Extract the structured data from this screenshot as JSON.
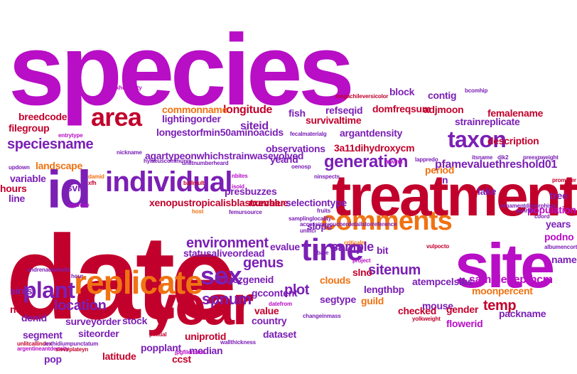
{
  "palette": {
    "magenta": "#b80ec6",
    "purple": "#7b1fb5",
    "crimson": "#c2002c",
    "red": "#d92010",
    "orange": "#f07212"
  },
  "words": [
    {
      "text": "species",
      "color": "#b80ec6"
    },
    {
      "text": "date",
      "color": "#c2002c"
    },
    {
      "text": "treatment",
      "color": "#c2002c"
    },
    {
      "text": "year",
      "color": "#c2002c"
    },
    {
      "text": "site",
      "color": "#b80ec6"
    },
    {
      "text": "id",
      "color": "#7b1fb5"
    },
    {
      "text": "replicate",
      "color": "#f07212"
    },
    {
      "text": "time",
      "color": "#7b1fb5"
    },
    {
      "text": "comments",
      "color": "#f07212"
    },
    {
      "text": "individual",
      "color": "#7b1fb5"
    },
    {
      "text": "area",
      "color": "#c2002c"
    },
    {
      "text": "sex",
      "color": "#7b1fb5"
    },
    {
      "text": "plant",
      "color": "#7b1fb5"
    },
    {
      "text": "taxon",
      "color": "#7b1fb5"
    },
    {
      "text": "generation",
      "color": "#7b1fb5"
    },
    {
      "text": "location",
      "color": "#7b1fb5"
    },
    {
      "text": "environment",
      "color": "#7b1fb5"
    },
    {
      "text": "sample",
      "color": "#7b1fb5"
    },
    {
      "text": "speciesname",
      "color": "#7b1fb5"
    },
    {
      "text": "genus",
      "color": "#7b1fb5"
    },
    {
      "text": "plot",
      "color": "#7b1fb5"
    },
    {
      "text": "sitenum",
      "color": "#7b1fb5"
    },
    {
      "text": "spnum",
      "color": "#7b1fb5"
    },
    {
      "text": "temp",
      "color": "#c2002c"
    },
    {
      "text": "siteid",
      "color": "#7b1fb5"
    },
    {
      "text": "longitude",
      "color": "#c2002c"
    },
    {
      "text": "lightingorder",
      "color": "#7b1fb5"
    },
    {
      "text": "commonname",
      "color": "#f07212"
    },
    {
      "text": "longestorfmin50aminoacids",
      "color": "#7b1fb5"
    },
    {
      "text": "agartypeonwhichstrainwasevolved",
      "color": "#7b1fb5"
    },
    {
      "text": "xenopustropicalisblastxevalue",
      "color": "#c2002c"
    },
    {
      "text": "statusaliveordead",
      "color": "#7b1fb5"
    },
    {
      "text": "entrezgeneid",
      "color": "#7b1fb5"
    },
    {
      "text": "gccontent",
      "color": "#7b1fb5"
    },
    {
      "text": "sampledepthcm",
      "color": "#b80ec6"
    },
    {
      "text": "pfamevaluethreshold01",
      "color": "#7b1fb5"
    },
    {
      "text": "3a11dihydroxycm",
      "color": "#c2002c"
    },
    {
      "text": "description",
      "color": "#c2002c"
    },
    {
      "text": "strainreplicate",
      "color": "#7b1fb5"
    },
    {
      "text": "femalename",
      "color": "#c2002c"
    },
    {
      "text": "adjmoon",
      "color": "#c2002c"
    },
    {
      "text": "domfreqsum",
      "color": "#c2002c"
    },
    {
      "text": "survivaltime",
      "color": "#c2002c"
    },
    {
      "text": "refseqid",
      "color": "#7b1fb5"
    },
    {
      "text": "fish",
      "color": "#7b1fb5"
    },
    {
      "text": "block",
      "color": "#7b1fb5"
    },
    {
      "text": "contig",
      "color": "#7b1fb5"
    },
    {
      "text": "argantdensity",
      "color": "#7b1fb5"
    },
    {
      "text": "observations",
      "color": "#7b1fb5"
    },
    {
      "text": "yearid",
      "color": "#7b1fb5"
    },
    {
      "text": "breedcode",
      "color": "#c2002c"
    },
    {
      "text": "filegroup",
      "color": "#c2002c"
    },
    {
      "text": "landscape",
      "color": "#f07212"
    },
    {
      "text": "variable",
      "color": "#7b1fb5"
    },
    {
      "text": "hours",
      "color": "#c2002c"
    },
    {
      "text": "line",
      "color": "#7b1fb5"
    },
    {
      "text": "svl",
      "color": "#7b1fb5"
    },
    {
      "text": "presbuzzes",
      "color": "#7b1fb5"
    },
    {
      "text": "number",
      "color": "#c2002c"
    },
    {
      "text": "selectiontype",
      "color": "#7b1fb5"
    },
    {
      "text": "period",
      "color": "#f07212"
    },
    {
      "text": "n",
      "color": "#7b1fb5"
    },
    {
      "text": "lake",
      "color": "#7b1fb5"
    },
    {
      "text": "tree",
      "color": "#7b1fb5"
    },
    {
      "text": "population",
      "color": "#b80ec6"
    },
    {
      "text": "years",
      "color": "#7b1fb5"
    },
    {
      "text": "podno",
      "color": "#b80ec6"
    },
    {
      "text": "name",
      "color": "#7b1fb5"
    },
    {
      "text": "slope",
      "color": "#7b1fb5"
    },
    {
      "text": "evalue",
      "color": "#7b1fb5"
    },
    {
      "text": "bit",
      "color": "#7b1fb5"
    },
    {
      "text": "slno",
      "color": "#c2002c"
    },
    {
      "text": "clouds",
      "color": "#f07212"
    },
    {
      "text": "lengthbp",
      "color": "#7b1fb5"
    },
    {
      "text": "atempcelsius",
      "color": "#7b1fb5"
    },
    {
      "text": "l1",
      "color": "#7b1fb5"
    },
    {
      "text": "moonpercent",
      "color": "#f07212"
    },
    {
      "text": "packname",
      "color": "#7b1fb5"
    },
    {
      "text": "mouse",
      "color": "#7b1fb5"
    },
    {
      "text": "gender",
      "color": "#c2002c"
    },
    {
      "text": "guild",
      "color": "#f07212"
    },
    {
      "text": "checked",
      "color": "#c2002c"
    },
    {
      "text": "segtype",
      "color": "#7b1fb5"
    },
    {
      "text": "value",
      "color": "#c2002c"
    },
    {
      "text": "country",
      "color": "#7b1fb5"
    },
    {
      "text": "dataset",
      "color": "#7b1fb5"
    },
    {
      "text": "flowerid",
      "color": "#b80ec6"
    },
    {
      "text": "sires",
      "color": "#7b1fb5"
    },
    {
      "text": "no",
      "color": "#c2002c"
    },
    {
      "text": "denid",
      "color": "#7b1fb5"
    },
    {
      "text": "segment",
      "color": "#7b1fb5"
    },
    {
      "text": "surveyorder",
      "color": "#7b1fb5"
    },
    {
      "text": "stock",
      "color": "#7b1fb5"
    },
    {
      "text": "siteorder",
      "color": "#7b1fb5"
    },
    {
      "text": "uniprotid",
      "color": "#c2002c"
    },
    {
      "text": "median",
      "color": "#7b1fb5"
    },
    {
      "text": "popplant",
      "color": "#7b1fb5"
    },
    {
      "text": "latitude",
      "color": "#c2002c"
    },
    {
      "text": "ccst",
      "color": "#c2002c"
    },
    {
      "text": "pop",
      "color": "#7b1fb5"
    },
    {
      "text": "maxhumidity",
      "color": "#b80ec6"
    },
    {
      "text": "bcomhip",
      "color": "#7b1fb5"
    },
    {
      "text": "megachileversicolor",
      "color": "#c2002c"
    },
    {
      "text": "entrytype",
      "color": "#b80ec6"
    },
    {
      "text": "fecalmaterialg",
      "color": "#7b1fb5"
    },
    {
      "text": "nickname",
      "color": "#7b1fb5"
    },
    {
      "text": "hylaeuscommunis",
      "color": "#7b1fb5"
    },
    {
      "text": "unlitnumberheard",
      "color": "#7b1fb5"
    },
    {
      "text": "lappredo",
      "color": "#7b1fb5"
    },
    {
      "text": "itsname",
      "color": "#7b1fb5"
    },
    {
      "text": "dik2",
      "color": "#7b1fb5"
    },
    {
      "text": "preexpweight",
      "color": "#7b1fb5"
    },
    {
      "text": "updown",
      "color": "#7b1fb5"
    },
    {
      "text": "mwind",
      "color": "#b80ec6"
    },
    {
      "text": "oenosp",
      "color": "#7b1fb5"
    },
    {
      "text": "ninspects",
      "color": "#7b1fb5"
    },
    {
      "text": "damid",
      "color": "#f07212"
    },
    {
      "text": "xfh",
      "color": "#c2002c"
    },
    {
      "text": "nbites",
      "color": "#b80ec6"
    },
    {
      "text": "isoid",
      "color": "#b80ec6"
    },
    {
      "text": "ballmult",
      "color": "#c2002c"
    },
    {
      "text": "agarose",
      "color": "#b80ec6"
    },
    {
      "text": "host",
      "color": "#f07212"
    },
    {
      "text": "femursource",
      "color": "#7b1fb5"
    },
    {
      "text": "fruits",
      "color": "#7b1fb5"
    },
    {
      "text": "samplinglocality",
      "color": "#7b1fb5"
    },
    {
      "text": "accessionvoucherdetailstorreference",
      "color": "#7b1fb5"
    },
    {
      "text": "ornamentdimorphism",
      "color": "#7b1fb5"
    },
    {
      "text": "coord",
      "color": "#7b1fb5"
    },
    {
      "text": "promoter",
      "color": "#c2002c"
    },
    {
      "text": "panhirt",
      "color": "#7b1fb5"
    },
    {
      "text": "unlitci",
      "color": "#7b1fb5"
    },
    {
      "text": "criticaln",
      "color": "#f07212"
    },
    {
      "text": "vulpocto",
      "color": "#c2002c"
    },
    {
      "text": "albumencort",
      "color": "#7b1fb5"
    },
    {
      "text": "andrenaclarkella",
      "color": "#7b1fb5"
    },
    {
      "text": "hour",
      "color": "#7b1fb5"
    },
    {
      "text": "project",
      "color": "#b80ec6"
    },
    {
      "text": "datefrom",
      "color": "#b80ec6"
    },
    {
      "text": "changeinmass",
      "color": "#7b1fb5"
    },
    {
      "text": "yolkweight",
      "color": "#c2002c"
    },
    {
      "text": "unlitcallindex",
      "color": "#c2002c"
    },
    {
      "text": "anthidiumpunctatum",
      "color": "#7b1fb5"
    },
    {
      "text": "argentineantdensity",
      "color": "#b80ec6"
    },
    {
      "text": "pinitial",
      "color": "#c2002c"
    },
    {
      "text": "wallthickness",
      "color": "#7b1fb5"
    },
    {
      "text": "sieveplateyn",
      "color": "#c2002c"
    },
    {
      "text": "jpgfilename",
      "color": "#b80ec6"
    },
    {
      "text": "bare",
      "color": "#7b1fb5"
    }
  ]
}
